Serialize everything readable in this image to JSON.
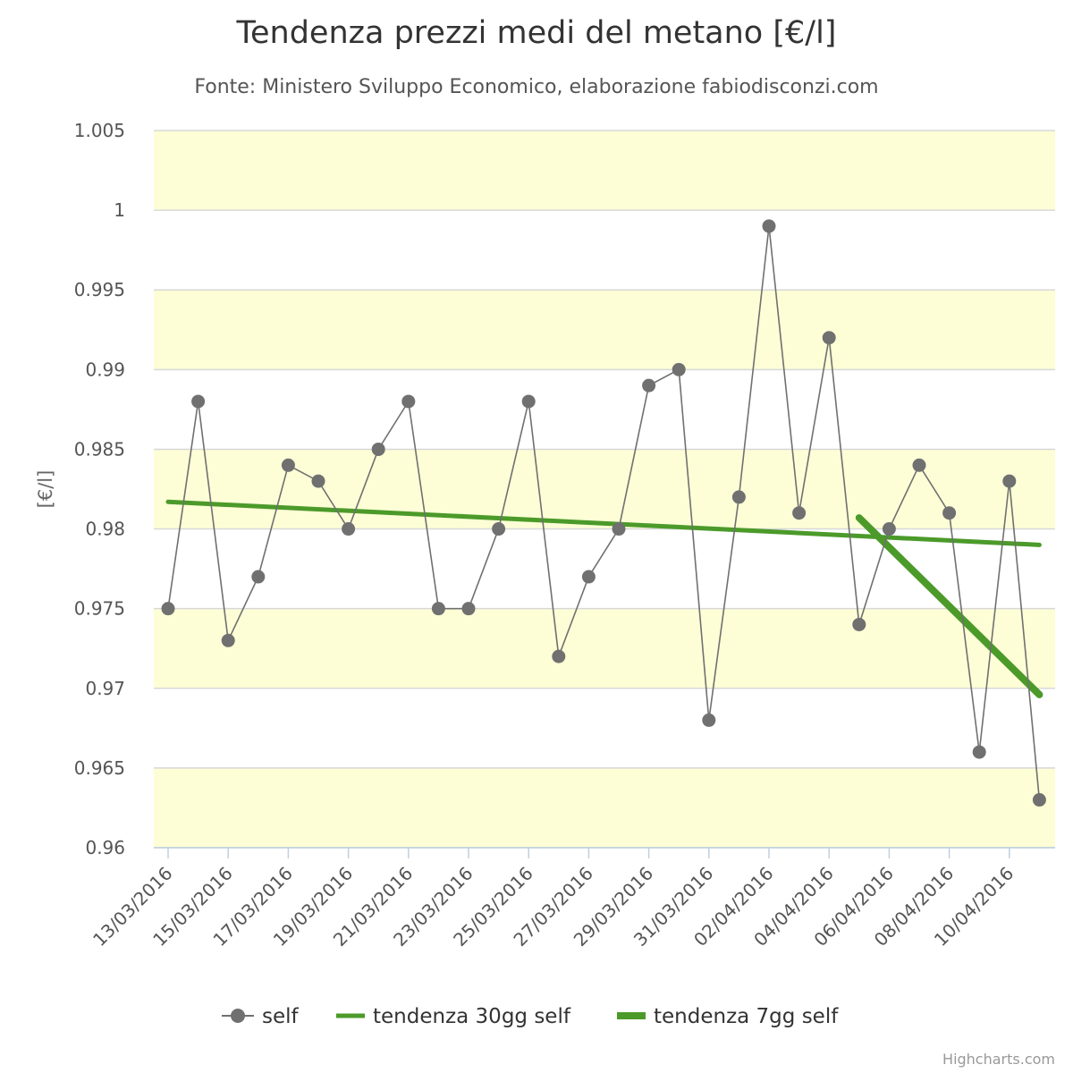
{
  "chart_data": {
    "type": "line",
    "title": "Tendenza prezzi medi del metano [€/l]",
    "subtitle": "Fonte: Ministero Sviluppo Economico, elaborazione fabiodisconzi.com",
    "ylabel": "[€/l]",
    "ylim": [
      0.96,
      1.005
    ],
    "yticks": [
      "0.96",
      "0.965",
      "0.97",
      "0.975",
      "0.98",
      "0.985",
      "0.99",
      "0.995",
      "1",
      "1.005"
    ],
    "band_color": "#fdfed6",
    "categories": [
      "13/03/2016",
      "14/03/2016",
      "15/03/2016",
      "16/03/2016",
      "17/03/2016",
      "18/03/2016",
      "19/03/2016",
      "20/03/2016",
      "21/03/2016",
      "22/03/2016",
      "23/03/2016",
      "24/03/2016",
      "25/03/2016",
      "26/03/2016",
      "27/03/2016",
      "28/03/2016",
      "29/03/2016",
      "30/03/2016",
      "31/03/2016",
      "01/04/2016",
      "02/04/2016",
      "03/04/2016",
      "04/04/2016",
      "05/04/2016",
      "06/04/2016",
      "07/04/2016",
      "08/04/2016",
      "09/04/2016",
      "10/04/2016",
      "11/04/2016"
    ],
    "x_tick_labels": [
      "13/03/2016",
      "15/03/2016",
      "17/03/2016",
      "19/03/2016",
      "21/03/2016",
      "23/03/2016",
      "25/03/2016",
      "27/03/2016",
      "29/03/2016",
      "31/03/2016",
      "02/04/2016",
      "04/04/2016",
      "06/04/2016",
      "08/04/2016",
      "10/04/2016"
    ],
    "series": [
      {
        "name": "self",
        "color": "#707070",
        "values": [
          0.975,
          0.988,
          0.973,
          0.977,
          0.984,
          0.983,
          0.98,
          0.985,
          0.988,
          0.975,
          0.975,
          0.98,
          0.988,
          0.972,
          0.977,
          0.98,
          0.989,
          0.99,
          0.968,
          0.982,
          0.999,
          0.981,
          0.992,
          0.974,
          0.98,
          0.984,
          0.981,
          0.966,
          0.983,
          0.963
        ]
      },
      {
        "name": "tendenza 30gg self",
        "color": "#4b9a2a",
        "x_start": "13/03/2016",
        "x_end": "11/04/2016",
        "y_start": 0.9817,
        "y_end": 0.979
      },
      {
        "name": "tendenza 7gg self",
        "color": "#4b9a2a",
        "x_start": "05/04/2016",
        "x_end": "11/04/2016",
        "y_start": 0.9807,
        "y_end": 0.9696
      }
    ],
    "legend_position": "bottom-center"
  },
  "credits": "Highcharts.com"
}
